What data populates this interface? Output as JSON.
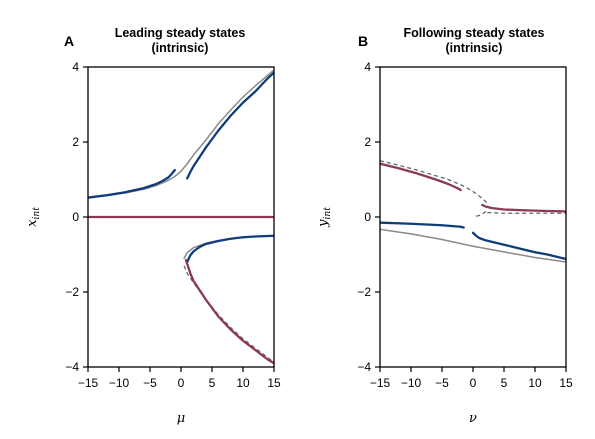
{
  "chart_data": [
    {
      "type": "line",
      "panel_label": "A",
      "title_lines": [
        "Leading steady states",
        "(intrinsic)"
      ],
      "xlabel": "μ",
      "ylabel_main": "x",
      "ylabel_sub": "int",
      "xlim": [
        -15,
        15
      ],
      "ylim": [
        -4,
        4
      ],
      "xticks": [
        -15,
        -10,
        -5,
        0,
        5,
        10,
        15
      ],
      "yticks": [
        -4,
        -2,
        0,
        2,
        4
      ],
      "xtick_labels": [
        "−15",
        "−10",
        "−5",
        "0",
        "5",
        "10",
        "15"
      ],
      "ytick_labels": [
        "−4",
        "−2",
        "0",
        "2",
        "4"
      ],
      "series": [
        {
          "color": "#8b3a52",
          "style": "solid",
          "width": 2.2,
          "x": [
            -15,
            15
          ],
          "y": [
            0,
            0
          ]
        },
        {
          "color": "#8a8a8a",
          "style": "solid",
          "width": 1.5,
          "x": [
            -15,
            -12,
            -9,
            -6,
            -4,
            -2,
            -1,
            0,
            1,
            2,
            4,
            6,
            8,
            10,
            12,
            14,
            15
          ],
          "y": [
            0.5,
            0.57,
            0.64,
            0.74,
            0.84,
            0.98,
            1.08,
            1.22,
            1.42,
            1.65,
            2.05,
            2.48,
            2.85,
            3.2,
            3.5,
            3.78,
            3.92
          ]
        },
        {
          "color": "#8a8a8a",
          "style": "solid",
          "width": 1.5,
          "x": [
            0.5,
            1,
            2,
            4,
            6,
            8,
            10,
            12,
            15
          ],
          "y": [
            -1.1,
            -0.95,
            -0.82,
            -0.7,
            -0.63,
            -0.58,
            -0.55,
            -0.52,
            -0.5
          ]
        },
        {
          "color": "#666666",
          "style": "dashed",
          "width": 1.3,
          "x": [
            0.5,
            1,
            2,
            4,
            6,
            8,
            10,
            12,
            14,
            15
          ],
          "y": [
            -1.3,
            -1.5,
            -1.75,
            -2.2,
            -2.6,
            -2.95,
            -3.25,
            -3.5,
            -3.75,
            -3.88
          ]
        },
        {
          "color": "#0f3d7a",
          "style": "solid",
          "width": 2.3,
          "x": [
            -15,
            -12,
            -9,
            -6,
            -4,
            -3,
            -2,
            -1.5,
            -1
          ],
          "y": [
            0.52,
            0.58,
            0.66,
            0.77,
            0.88,
            0.96,
            1.06,
            1.15,
            1.25
          ]
        },
        {
          "color": "#0f3d7a",
          "style": "solid",
          "width": 2.3,
          "x": [
            1,
            1.5,
            2,
            3,
            4,
            6,
            8,
            10,
            12,
            14,
            15
          ],
          "y": [
            1.03,
            1.2,
            1.35,
            1.6,
            1.85,
            2.3,
            2.7,
            3.05,
            3.35,
            3.7,
            3.85
          ]
        },
        {
          "color": "#0f3d7a",
          "style": "solid",
          "width": 2.3,
          "x": [
            1,
            1.5,
            2,
            3,
            4,
            6,
            8,
            10,
            12,
            15
          ],
          "y": [
            -1.2,
            -1.02,
            -0.92,
            -0.8,
            -0.72,
            -0.64,
            -0.58,
            -0.54,
            -0.52,
            -0.5
          ]
        },
        {
          "color": "#8b3a52",
          "style": "solid",
          "width": 2.3,
          "x": [
            0.8,
            1.5,
            2,
            4,
            6,
            8,
            10,
            12,
            14,
            15
          ],
          "y": [
            -1.15,
            -1.5,
            -1.7,
            -2.2,
            -2.65,
            -3.0,
            -3.3,
            -3.55,
            -3.8,
            -3.9
          ]
        }
      ]
    },
    {
      "type": "line",
      "panel_label": "B",
      "title_lines": [
        "Following steady states",
        "(intrinsic)"
      ],
      "xlabel": "ν",
      "ylabel_main": "y",
      "ylabel_sub": "int",
      "xlim": [
        -15,
        15
      ],
      "ylim": [
        -4,
        4
      ],
      "xticks": [
        -15,
        -10,
        -5,
        0,
        5,
        10,
        15
      ],
      "yticks": [
        -4,
        -2,
        0,
        2,
        4
      ],
      "xtick_labels": [
        "−15",
        "−10",
        "−5",
        "0",
        "5",
        "10",
        "15"
      ],
      "ytick_labels": [
        "−4",
        "−2",
        "0",
        "2",
        "4"
      ],
      "series": [
        {
          "color": "#8a8a8a",
          "style": "solid",
          "width": 1.5,
          "x": [
            -15,
            -10,
            -5,
            0,
            5,
            10,
            15
          ],
          "y": [
            -0.33,
            -0.45,
            -0.6,
            -0.78,
            -0.93,
            -1.08,
            -1.2
          ]
        },
        {
          "color": "#666666",
          "style": "dashed",
          "width": 1.3,
          "x": [
            -15,
            -12,
            -9,
            -6,
            -4,
            -2,
            -1,
            0,
            1,
            2,
            2.5
          ],
          "y": [
            1.5,
            1.38,
            1.25,
            1.1,
            1.0,
            0.86,
            0.78,
            0.68,
            0.56,
            0.42,
            0.32
          ]
        },
        {
          "color": "#666666",
          "style": "dashed",
          "width": 1.3,
          "x": [
            0.5,
            1,
            1.5,
            2,
            2.3
          ],
          "y": [
            0.02,
            0.04,
            0.08,
            0.14,
            0.2
          ]
        },
        {
          "color": "#666666",
          "style": "dashed",
          "width": 1.3,
          "x": [
            2.3,
            5,
            10,
            15
          ],
          "y": [
            0.12,
            0.1,
            0.1,
            0.1
          ]
        },
        {
          "color": "#8b3a52",
          "style": "solid",
          "width": 2.3,
          "x": [
            -15,
            -12,
            -9,
            -6,
            -4,
            -2.5,
            -2
          ],
          "y": [
            1.42,
            1.3,
            1.16,
            1.0,
            0.88,
            0.77,
            0.72
          ]
        },
        {
          "color": "#8b3a52",
          "style": "solid",
          "width": 2.3,
          "x": [
            1.5,
            2,
            3,
            5,
            8,
            10,
            12,
            15
          ],
          "y": [
            0.32,
            0.28,
            0.24,
            0.2,
            0.18,
            0.17,
            0.16,
            0.15
          ]
        },
        {
          "color": "#0f3d7a",
          "style": "solid",
          "width": 2.3,
          "x": [
            -15,
            -10,
            -5,
            -2,
            -1.5
          ],
          "y": [
            -0.15,
            -0.18,
            -0.22,
            -0.26,
            -0.28
          ]
        },
        {
          "color": "#0f3d7a",
          "style": "solid",
          "width": 2.3,
          "x": [
            0,
            0.5,
            1,
            2,
            4,
            6,
            8,
            10,
            12,
            15
          ],
          "y": [
            -0.42,
            -0.5,
            -0.56,
            -0.62,
            -0.7,
            -0.78,
            -0.86,
            -0.94,
            -1.0,
            -1.12
          ]
        }
      ]
    }
  ]
}
